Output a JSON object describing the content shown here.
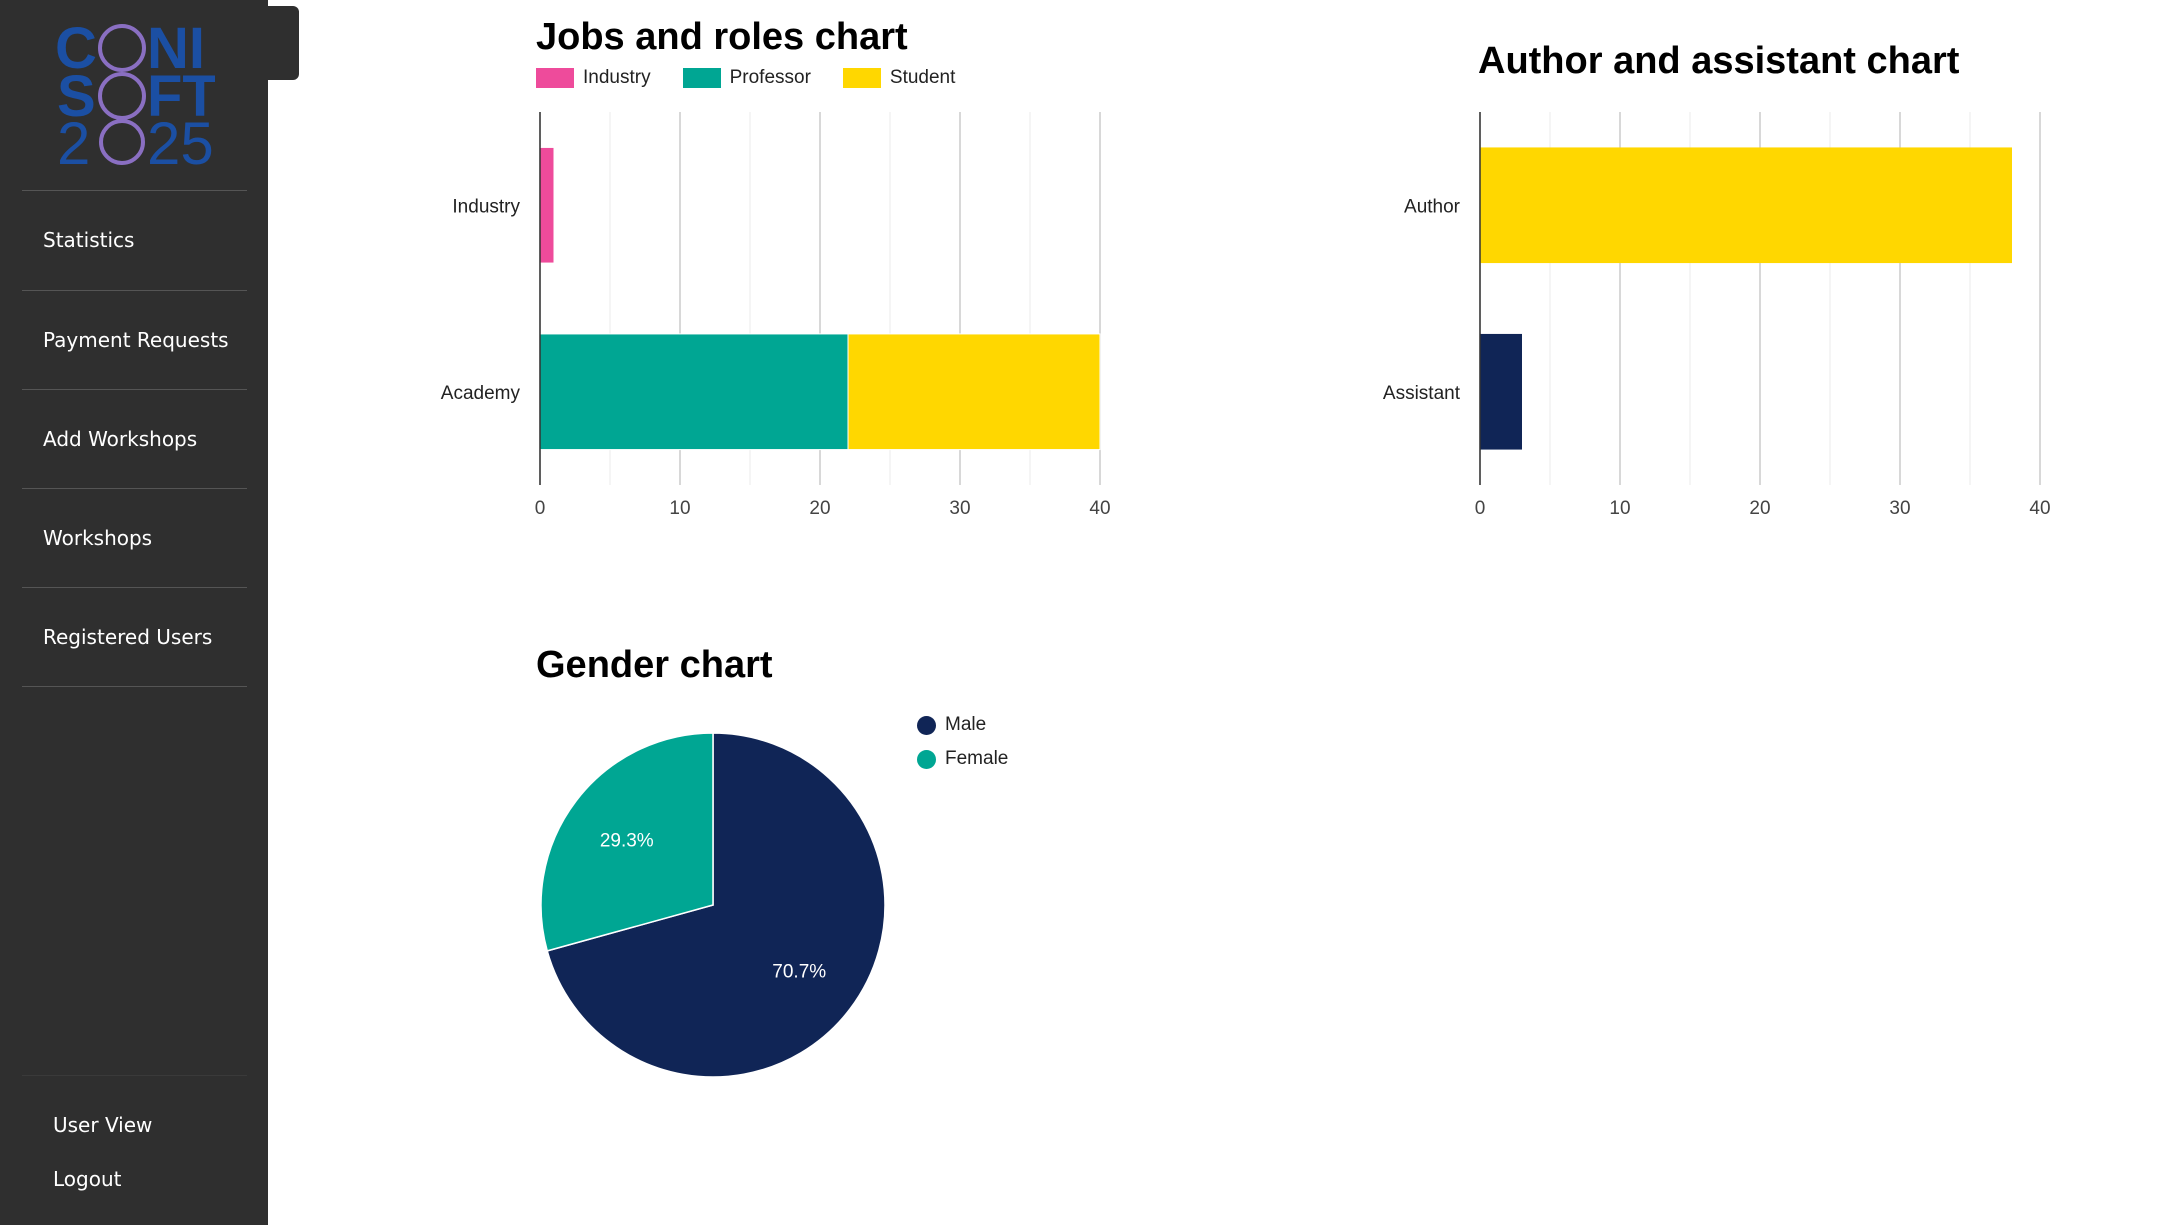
{
  "sidebar": {
    "logo": {
      "alt": "CONISOFT 2025",
      "colors": {
        "blue": "#1b4fa3",
        "purple": "#8a6fc2"
      }
    },
    "nav": [
      {
        "label": "Statistics"
      },
      {
        "label": "Payment Requests"
      },
      {
        "label": "Add Workshops"
      },
      {
        "label": "Workshops"
      },
      {
        "label": "Registered Users"
      }
    ],
    "bottom": [
      {
        "label": "User View"
      },
      {
        "label": "Logout"
      }
    ]
  },
  "colors": {
    "industry": "#ee4b9b",
    "professor": "#00a693",
    "student": "#ffd700",
    "navy": "#102556"
  },
  "chart_data": [
    {
      "type": "bar",
      "orientation": "horizontal",
      "stacked": true,
      "title": "Jobs and roles chart",
      "categories": [
        "Industry",
        "Academy"
      ],
      "series": [
        {
          "name": "Industry",
          "values": [
            1,
            0
          ]
        },
        {
          "name": "Professor",
          "values": [
            0,
            22
          ]
        },
        {
          "name": "Student",
          "values": [
            0,
            18
          ]
        }
      ],
      "xticks": [
        "0",
        "10",
        "20",
        "30",
        "40"
      ],
      "xlim": [
        0,
        40
      ],
      "grid": true,
      "legend": "top"
    },
    {
      "type": "bar",
      "orientation": "horizontal",
      "title": "Author and assistant chart",
      "categories": [
        "Author",
        "Assistant"
      ],
      "values": [
        38,
        3
      ],
      "xticks": [
        "0",
        "10",
        "20",
        "30",
        "40"
      ],
      "xlim": [
        0,
        40
      ],
      "grid": true
    },
    {
      "type": "pie",
      "title": "Gender chart",
      "slices": [
        {
          "name": "Male",
          "value": 70.7,
          "label": "70.7%"
        },
        {
          "name": "Female",
          "value": 29.3,
          "label": "29.3%"
        }
      ],
      "legend": "right"
    }
  ]
}
